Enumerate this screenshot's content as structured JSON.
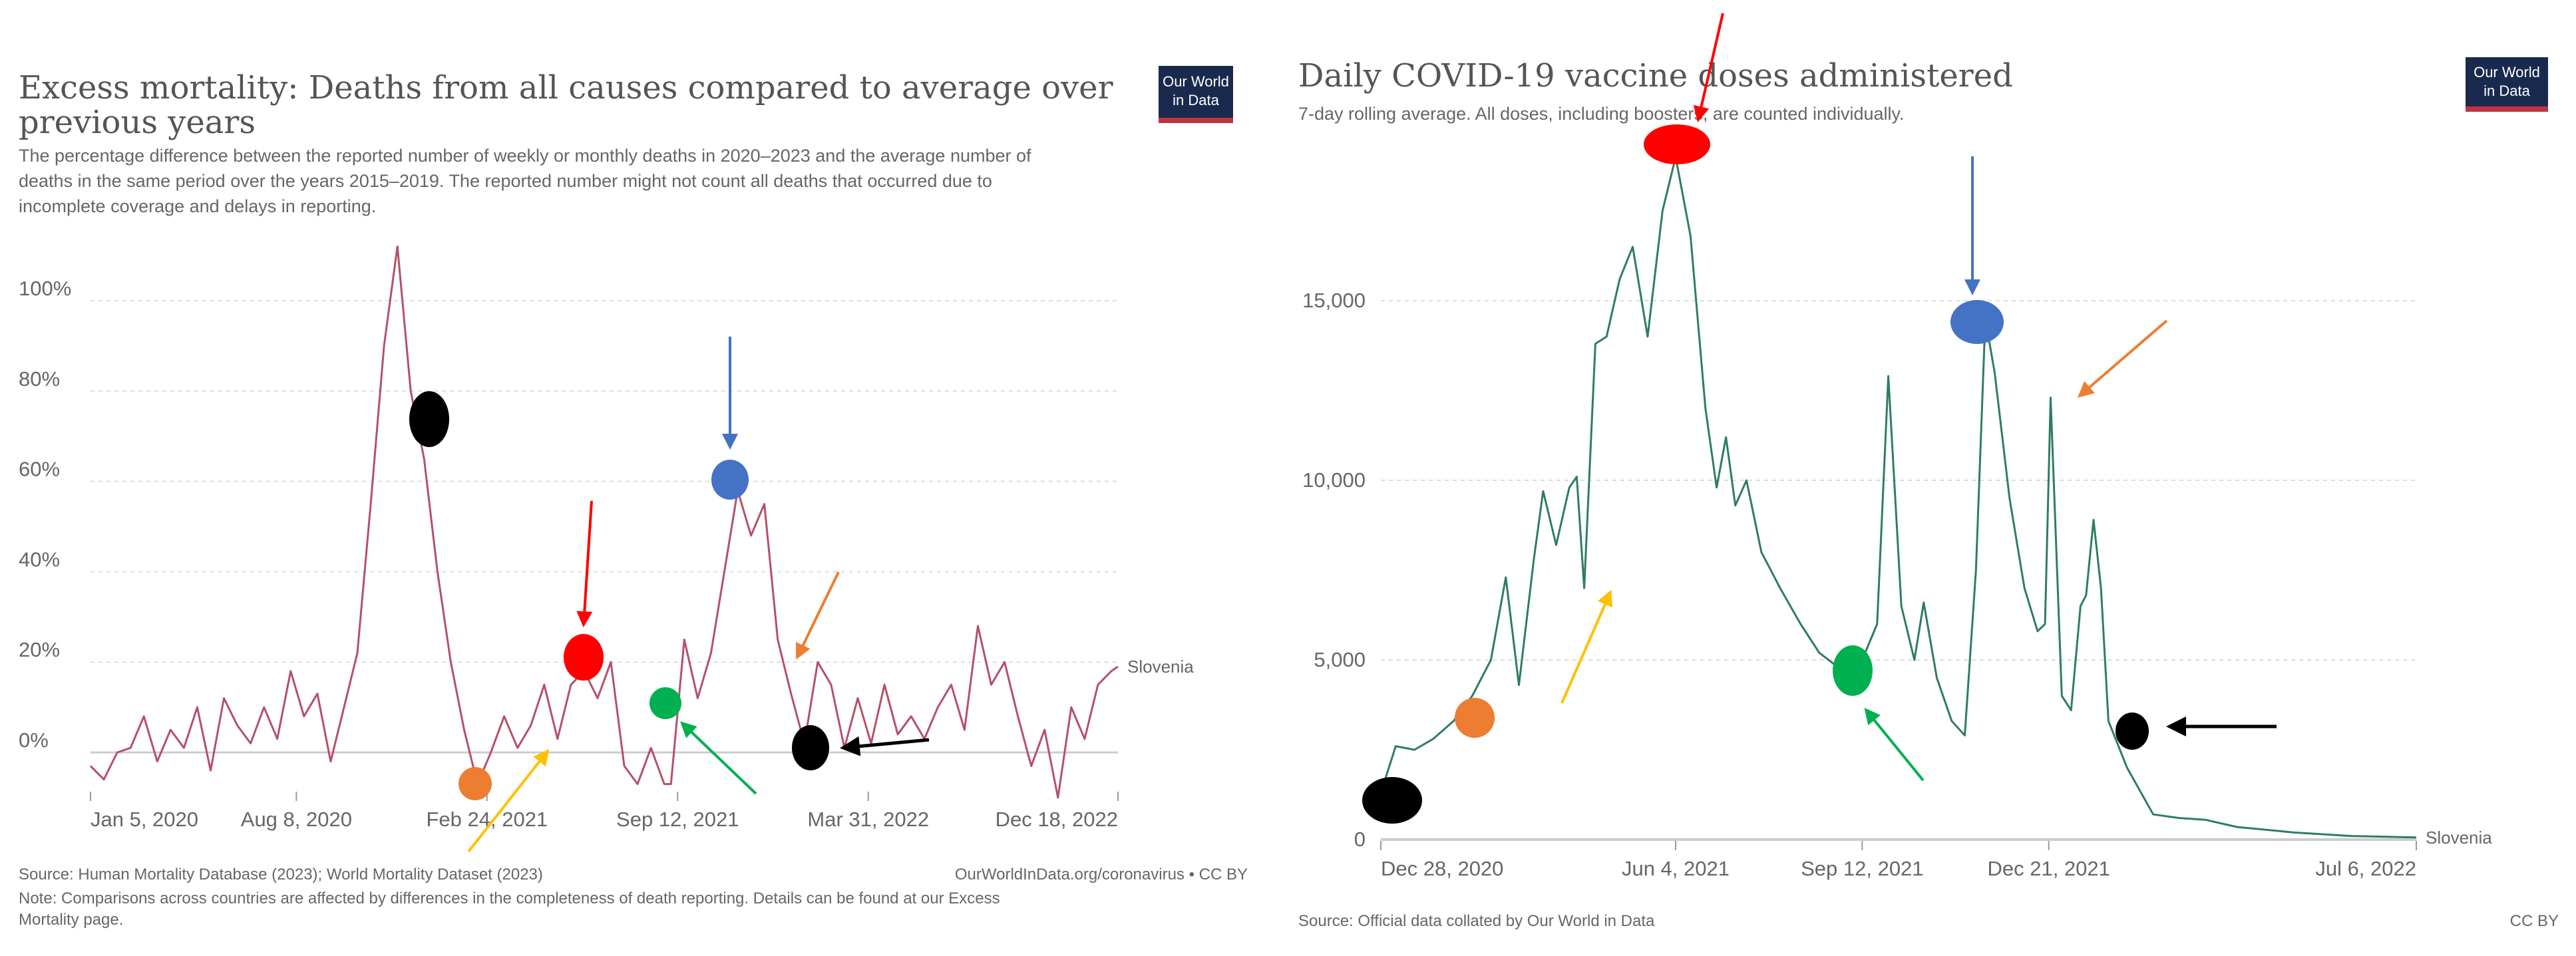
{
  "logo_text": [
    "Our World",
    "in Data"
  ],
  "annotation_colors": {
    "red": "#ff0000",
    "blue": "#4472c4",
    "orange": "#ed7d31",
    "yellow": "#ffc000",
    "green": "#00b050",
    "black": "#000000"
  },
  "chart_data": [
    {
      "type": "line",
      "title_lines": [
        "Excess mortality: Deaths from all causes compared to average over",
        "previous years"
      ],
      "subtitle_lines": [
        "The percentage difference between the reported number of weekly or monthly deaths in 2020–2023 and the average number of",
        "deaths in the same period over the years 2015–2019. The reported number might not count all deaths that occurred due to",
        "incomplete coverage and delays in reporting."
      ],
      "ylim": [
        -10,
        115
      ],
      "y_ticks": [
        {
          "v": 0,
          "label": "0%"
        },
        {
          "v": 20,
          "label": "20%"
        },
        {
          "v": 40,
          "label": "40%"
        },
        {
          "v": 60,
          "label": "60%"
        },
        {
          "v": 80,
          "label": "80%"
        },
        {
          "v": 100,
          "label": "100%"
        }
      ],
      "x_range": [
        "2020-01-05",
        "2022-12-18"
      ],
      "x_ticks": [
        {
          "d": "2020-01-05",
          "label": "Jan 5, 2020"
        },
        {
          "d": "2020-08-08",
          "label": "Aug 8, 2020"
        },
        {
          "d": "2021-02-24",
          "label": "Feb 24, 2021"
        },
        {
          "d": "2021-09-12",
          "label": "Sep 12, 2021"
        },
        {
          "d": "2022-03-31",
          "label": "Mar 31, 2022"
        },
        {
          "d": "2022-12-18",
          "label": "Dec 18, 2022"
        }
      ],
      "grid": true,
      "line_color": "#b5506a",
      "series": [
        {
          "name": "Slovenia",
          "points": [
            [
              "2020-01-05",
              -3
            ],
            [
              "2020-01-19",
              -6
            ],
            [
              "2020-02-02",
              0
            ],
            [
              "2020-02-16",
              1
            ],
            [
              "2020-03-01",
              8
            ],
            [
              "2020-03-15",
              -2
            ],
            [
              "2020-03-29",
              5
            ],
            [
              "2020-04-12",
              1
            ],
            [
              "2020-04-26",
              10
            ],
            [
              "2020-05-10",
              -4
            ],
            [
              "2020-05-24",
              12
            ],
            [
              "2020-06-07",
              6
            ],
            [
              "2020-06-21",
              2
            ],
            [
              "2020-07-05",
              10
            ],
            [
              "2020-07-19",
              3
            ],
            [
              "2020-08-02",
              18
            ],
            [
              "2020-08-16",
              8
            ],
            [
              "2020-08-30",
              13
            ],
            [
              "2020-09-13",
              -2
            ],
            [
              "2020-09-27",
              10
            ],
            [
              "2020-10-11",
              22
            ],
            [
              "2020-10-25",
              55
            ],
            [
              "2020-11-08",
              90
            ],
            [
              "2020-11-22",
              112
            ],
            [
              "2020-12-06",
              80
            ],
            [
              "2020-12-20",
              65
            ],
            [
              "2021-01-03",
              40
            ],
            [
              "2021-01-17",
              20
            ],
            [
              "2021-01-31",
              5
            ],
            [
              "2021-02-14",
              -7
            ],
            [
              "2021-02-28",
              0
            ],
            [
              "2021-03-14",
              8
            ],
            [
              "2021-03-28",
              1
            ],
            [
              "2021-04-11",
              6
            ],
            [
              "2021-04-25",
              15
            ],
            [
              "2021-05-09",
              3
            ],
            [
              "2021-05-23",
              15
            ],
            [
              "2021-06-06",
              18
            ],
            [
              "2021-06-20",
              12
            ],
            [
              "2021-07-04",
              20
            ],
            [
              "2021-07-18",
              -3
            ],
            [
              "2021-08-01",
              -7
            ],
            [
              "2021-08-15",
              1
            ],
            [
              "2021-08-29",
              -7
            ],
            [
              "2021-09-05",
              -7
            ],
            [
              "2021-09-19",
              25
            ],
            [
              "2021-10-03",
              12
            ],
            [
              "2021-10-17",
              22
            ],
            [
              "2021-10-31",
              40
            ],
            [
              "2021-11-14",
              58
            ],
            [
              "2021-11-28",
              48
            ],
            [
              "2021-12-12",
              55
            ],
            [
              "2021-12-26",
              25
            ],
            [
              "2022-01-09",
              13
            ],
            [
              "2022-01-23",
              2
            ],
            [
              "2022-02-06",
              20
            ],
            [
              "2022-02-20",
              15
            ],
            [
              "2022-03-06",
              1
            ],
            [
              "2022-03-20",
              12
            ],
            [
              "2022-04-03",
              2
            ],
            [
              "2022-04-17",
              15
            ],
            [
              "2022-05-01",
              4
            ],
            [
              "2022-05-15",
              8
            ],
            [
              "2022-05-29",
              3
            ],
            [
              "2022-06-12",
              10
            ],
            [
              "2022-06-26",
              15
            ],
            [
              "2022-07-10",
              5
            ],
            [
              "2022-07-24",
              28
            ],
            [
              "2022-08-07",
              15
            ],
            [
              "2022-08-21",
              20
            ],
            [
              "2022-09-04",
              8
            ],
            [
              "2022-09-18",
              -3
            ],
            [
              "2022-10-02",
              5
            ],
            [
              "2022-10-16",
              -10
            ],
            [
              "2022-10-30",
              10
            ],
            [
              "2022-11-13",
              3
            ],
            [
              "2022-11-27",
              15
            ],
            [
              "2022-12-11",
              18
            ],
            [
              "2022-12-18",
              19
            ]
          ]
        }
      ],
      "series_label": "Slovenia",
      "source": "Source: Human Mortality Database (2023); World Mortality Dataset (2023)",
      "credit": "OurWorldInData.org/coronavirus • CC BY",
      "note_lines": [
        "Note: Comparisons across countries are affected by differences in the completeness of death reporting. Details can be found at our Excess",
        "Mortality page."
      ]
    },
    {
      "type": "line",
      "title": "Daily COVID-19 vaccine doses administered",
      "subtitle": "7-day rolling average. All doses, including boosters, are counted individually.",
      "ylim": [
        0,
        20000
      ],
      "y_ticks": [
        {
          "v": 0,
          "label": "0"
        },
        {
          "v": 5000,
          "label": "5,000"
        },
        {
          "v": 10000,
          "label": "10,000"
        },
        {
          "v": 15000,
          "label": "15,000"
        }
      ],
      "x_range": [
        "2020-12-28",
        "2022-07-06"
      ],
      "x_ticks": [
        {
          "d": "2020-12-28",
          "label": "Dec 28, 2020"
        },
        {
          "d": "2021-06-04",
          "label": "Jun 4, 2021"
        },
        {
          "d": "2021-09-12",
          "label": "Sep 12, 2021"
        },
        {
          "d": "2021-12-21",
          "label": "Dec 21, 2021"
        },
        {
          "d": "2022-07-06",
          "label": "Jul 6, 2022"
        }
      ],
      "grid": true,
      "line_color": "#2e7d62",
      "series": [
        {
          "name": "Slovenia",
          "points": [
            [
              "2020-12-28",
              1300
            ],
            [
              "2021-01-05",
              2600
            ],
            [
              "2021-01-15",
              2500
            ],
            [
              "2021-01-25",
              2800
            ],
            [
              "2021-02-05",
              3300
            ],
            [
              "2021-02-15",
              4000
            ],
            [
              "2021-02-25",
              5000
            ],
            [
              "2021-03-05",
              7300
            ],
            [
              "2021-03-12",
              4300
            ],
            [
              "2021-03-20",
              7800
            ],
            [
              "2021-03-25",
              9700
            ],
            [
              "2021-04-01",
              8200
            ],
            [
              "2021-04-08",
              9800
            ],
            [
              "2021-04-12",
              10100
            ],
            [
              "2021-04-16",
              7000
            ],
            [
              "2021-04-22",
              13800
            ],
            [
              "2021-04-28",
              14000
            ],
            [
              "2021-05-05",
              15600
            ],
            [
              "2021-05-12",
              16500
            ],
            [
              "2021-05-20",
              14000
            ],
            [
              "2021-05-28",
              17500
            ],
            [
              "2021-06-04",
              19000
            ],
            [
              "2021-06-12",
              16800
            ],
            [
              "2021-06-20",
              12000
            ],
            [
              "2021-06-26",
              9800
            ],
            [
              "2021-07-01",
              11200
            ],
            [
              "2021-07-06",
              9300
            ],
            [
              "2021-07-12",
              10000
            ],
            [
              "2021-07-20",
              8000
            ],
            [
              "2021-07-30",
              7000
            ],
            [
              "2021-08-10",
              6000
            ],
            [
              "2021-08-20",
              5200
            ],
            [
              "2021-08-30",
              4800
            ],
            [
              "2021-09-12",
              5000
            ],
            [
              "2021-09-20",
              6000
            ],
            [
              "2021-09-26",
              12900
            ],
            [
              "2021-10-03",
              6500
            ],
            [
              "2021-10-10",
              5000
            ],
            [
              "2021-10-15",
              6600
            ],
            [
              "2021-10-22",
              4500
            ],
            [
              "2021-10-30",
              3300
            ],
            [
              "2021-11-06",
              2900
            ],
            [
              "2021-11-12",
              7500
            ],
            [
              "2021-11-17",
              14500
            ],
            [
              "2021-11-22",
              13000
            ],
            [
              "2021-11-30",
              9500
            ],
            [
              "2021-12-08",
              7000
            ],
            [
              "2021-12-15",
              5800
            ],
            [
              "2021-12-19",
              6000
            ],
            [
              "2021-12-22",
              12300
            ],
            [
              "2021-12-28",
              4000
            ],
            [
              "2022-01-02",
              3600
            ],
            [
              "2022-01-07",
              6500
            ],
            [
              "2022-01-10",
              6800
            ],
            [
              "2022-01-14",
              8900
            ],
            [
              "2022-01-18",
              7000
            ],
            [
              "2022-01-22",
              3300
            ],
            [
              "2022-02-01",
              2000
            ],
            [
              "2022-02-15",
              700
            ],
            [
              "2022-03-01",
              600
            ],
            [
              "2022-03-15",
              550
            ],
            [
              "2022-04-01",
              350
            ],
            [
              "2022-05-01",
              200
            ],
            [
              "2022-06-01",
              100
            ],
            [
              "2022-07-06",
              60
            ]
          ]
        }
      ],
      "series_label": "Slovenia",
      "source": "Source: Official data collated by Our World in Data",
      "credit": "CC BY"
    }
  ]
}
